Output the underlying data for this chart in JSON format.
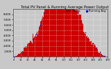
{
  "title": "Total PV Panel & Running Average Power Output",
  "background_color": "#c8c8c8",
  "plot_bg_color": "#c8c8c8",
  "bar_color": "#cc0000",
  "avg_color": "#0000dd",
  "grid_color": "#ffffff",
  "title_color": "#000000",
  "title_fontsize": 3.8,
  "tick_fontsize": 2.8,
  "legend_fontsize": 2.8,
  "ylim": [
    0,
    9000
  ],
  "ytick_labels": [
    "1,000",
    "2,000",
    "3,000",
    "4,000",
    "5,000",
    "6,000",
    "7,000",
    "8,000"
  ],
  "ytick_vals": [
    1000,
    2000,
    3000,
    4000,
    5000,
    6000,
    7000,
    8000
  ],
  "n_bars": 200,
  "seed": 17
}
